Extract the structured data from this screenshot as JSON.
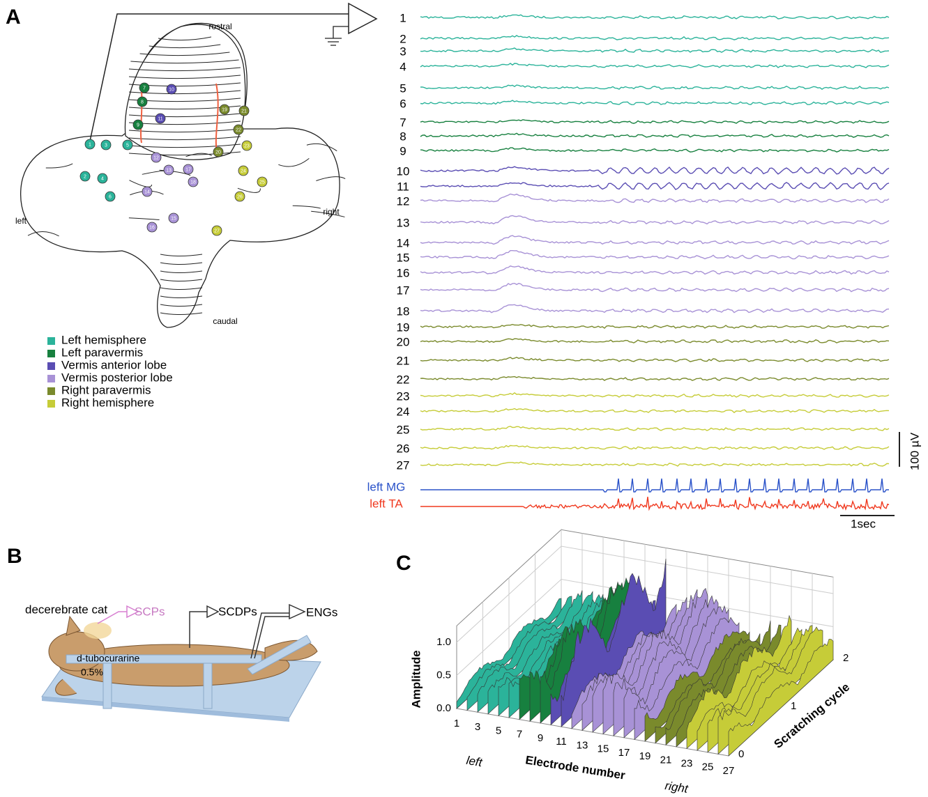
{
  "panel_a": {
    "label": "A",
    "map": {
      "rostral": "rostral",
      "caudal": "caudal",
      "left": "left",
      "right": "right"
    },
    "legend": [
      {
        "name": "Left hemisphere",
        "color": "#2bb39a",
        "electrodes": [
          "1",
          "2",
          "3",
          "4",
          "5",
          "6"
        ]
      },
      {
        "name": "Left paravermis",
        "color": "#17803f",
        "electrodes": [
          "7",
          "8",
          "9"
        ]
      },
      {
        "name": "Vermis anterior lobe",
        "color": "#5a4db3",
        "electrodes": [
          "10",
          "11"
        ]
      },
      {
        "name": "Vermis posterior lobe",
        "color": "#a892d6",
        "electrodes": [
          "12",
          "13",
          "14",
          "15",
          "16",
          "17",
          "18"
        ]
      },
      {
        "name": "Right paravermis",
        "color": "#7a8a2c",
        "electrodes": [
          "19",
          "20",
          "21",
          "22"
        ]
      },
      {
        "name": "Right hemisphere",
        "color": "#c6cc38",
        "electrodes": [
          "23",
          "24",
          "25",
          "26",
          "27"
        ]
      }
    ],
    "emg": [
      {
        "name": "left MG",
        "color": "#2a52c9"
      },
      {
        "name": "left TA",
        "color": "#f0391f"
      }
    ],
    "scale_voltage": "100 µV",
    "scale_time": "1sec"
  },
  "panel_b": {
    "label": "B",
    "animal": "decerebrate cat",
    "scp": "SCPs",
    "scdp": "SCDPs",
    "eng": "ENGs",
    "drug": "d-tubocurarine",
    "dose": "0.5%"
  },
  "panel_c": {
    "label": "C",
    "z_title": "Amplitude",
    "z_ticks": [
      "0.0",
      "0.5",
      "1.0"
    ],
    "x_title": "Electrode number",
    "x_ticks": [
      "1",
      "3",
      "5",
      "7",
      "9",
      "11",
      "13",
      "15",
      "17",
      "19",
      "21",
      "23",
      "25",
      "27"
    ],
    "x_left": "left",
    "x_right": "right",
    "y_title": "Scratching cycle",
    "y_ticks": [
      "0",
      "1",
      "2"
    ]
  }
}
